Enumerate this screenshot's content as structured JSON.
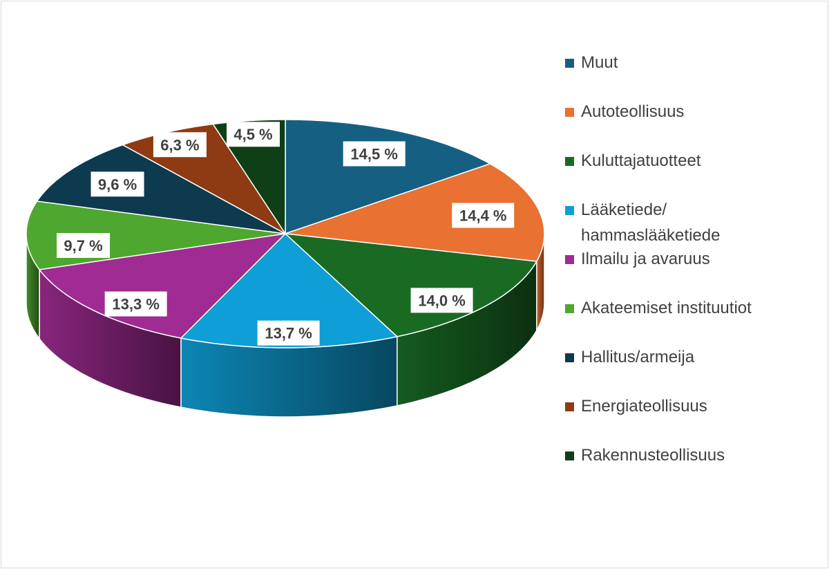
{
  "chart_data": {
    "type": "pie",
    "style": "3d",
    "title": "",
    "legend_position": "right",
    "slices": [
      {
        "label": "Muut",
        "value": 14.5,
        "display": "14,5 %",
        "color": "#156082"
      },
      {
        "label": "Autoteollisuus",
        "value": 14.4,
        "display": "14,4 %",
        "color": "#E97132"
      },
      {
        "label": "Kuluttajatuotteet",
        "value": 14.0,
        "display": "14,0 %",
        "color": "#196B24"
      },
      {
        "label": "Lääketiede/ hammaslääketiede",
        "value": 13.7,
        "display": "13,7 %",
        "color": "#0F9ED5"
      },
      {
        "label": "Ilmailu ja avaruus",
        "value": 13.3,
        "display": "13,3 %",
        "color": "#A02B93"
      },
      {
        "label": "Akateemiset instituutiot",
        "value": 9.7,
        "display": "9,7 %",
        "color": "#4EA72E"
      },
      {
        "label": "Hallitus/armeija",
        "value": 9.6,
        "display": "9,6 %",
        "color": "#0D3A4F"
      },
      {
        "label": "Energiateollisuus",
        "value": 6.3,
        "display": "6,3 %",
        "color": "#8E3A12"
      },
      {
        "label": "Rakennusteollisuus",
        "value": 4.5,
        "display": "4,5 %",
        "color": "#0E3F16"
      }
    ]
  }
}
